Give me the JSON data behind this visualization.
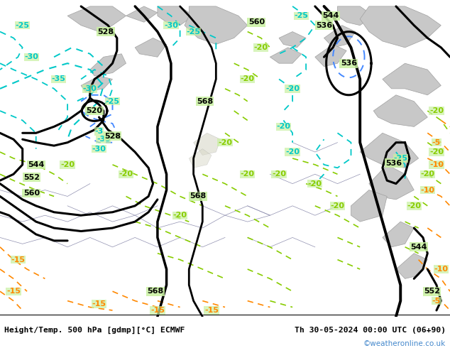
{
  "title_left": "Height/Temp. 500 hPa [gdmp][°C] ECMWF",
  "title_right": "Th 30-05-2024 00:00 UTC (06+90)",
  "credit": "©weatheronline.co.uk",
  "bg_color": "#c8f0a0",
  "gray_border_color": "#a0a0a0",
  "gray_fill_color": "#c8c8c8",
  "footer_bg": "#ffffff",
  "title_color": "#000000",
  "credit_color": "#4488cc",
  "black": "#000000",
  "cyan": "#00c8c8",
  "blue": "#4488ff",
  "yellow_green": "#88cc00",
  "orange": "#ff8800",
  "figsize": [
    6.34,
    4.9
  ],
  "dpi": 100
}
